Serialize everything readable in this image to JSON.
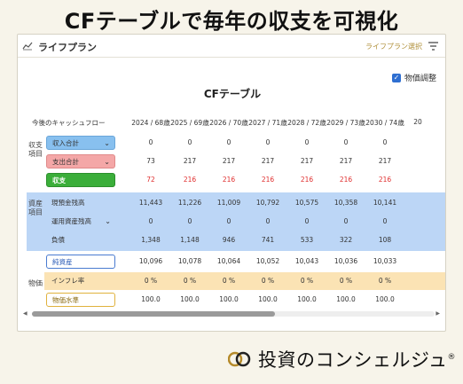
{
  "headline": "CFテーブルで毎年の収支を可視化",
  "card": {
    "title": "ライフプラン",
    "plan_select": "ライフプラン選択",
    "price_adjust": "物価調整",
    "table_title": "CFテーブル"
  },
  "table": {
    "header_label": "今後のキャッシュフロー",
    "years": [
      "2024 / 68歳",
      "2025 / 69歳",
      "2026 / 70歳",
      "2027 / 71歳",
      "2028 / 72歳",
      "2029 / 73歳",
      "2030 / 74歳",
      "20"
    ],
    "sections": {
      "income": "収支項目",
      "assets": "資産項目",
      "price": "物価"
    },
    "rows": {
      "income_total": {
        "label": "収入合計",
        "values": [
          "0",
          "0",
          "0",
          "0",
          "0",
          "0",
          "0"
        ]
      },
      "expense_total": {
        "label": "支出合計",
        "values": [
          "73",
          "217",
          "217",
          "217",
          "217",
          "217",
          "217"
        ]
      },
      "balance": {
        "label": "収支",
        "values": [
          "72",
          "216",
          "216",
          "216",
          "216",
          "216",
          "216"
        ]
      },
      "cash_savings": {
        "label": "現預金残高",
        "values": [
          "11,443",
          "11,226",
          "11,009",
          "10,792",
          "10,575",
          "10,358",
          "10,141"
        ]
      },
      "investment": {
        "label": "運用資産残高",
        "values": [
          "0",
          "0",
          "0",
          "0",
          "0",
          "0",
          "0"
        ]
      },
      "debt": {
        "label": "負債",
        "values": [
          "1,348",
          "1,148",
          "946",
          "741",
          "533",
          "322",
          "108"
        ]
      },
      "net_assets": {
        "label": "純資産",
        "values": [
          "10,096",
          "10,078",
          "10,064",
          "10,052",
          "10,043",
          "10,036",
          "10,033"
        ]
      },
      "inflation": {
        "label": "インフレ率",
        "values": [
          "0 %",
          "0 %",
          "0 %",
          "0 %",
          "0 %",
          "0 %",
          "0 %"
        ]
      },
      "price_level": {
        "label": "物価水準",
        "values": [
          "100.0",
          "100.0",
          "100.0",
          "100.0",
          "100.0",
          "100.0",
          "100.0"
        ]
      }
    }
  },
  "brand": {
    "name": "投資のコンシェルジュ",
    "mark": "®"
  },
  "colors": {
    "blue_row": "#bcd6f6",
    "yellow_row": "#fbe3b4",
    "green_tag": "#3bae3a",
    "pink_tag": "#f4a7a7",
    "negative_red": "#e03030"
  }
}
